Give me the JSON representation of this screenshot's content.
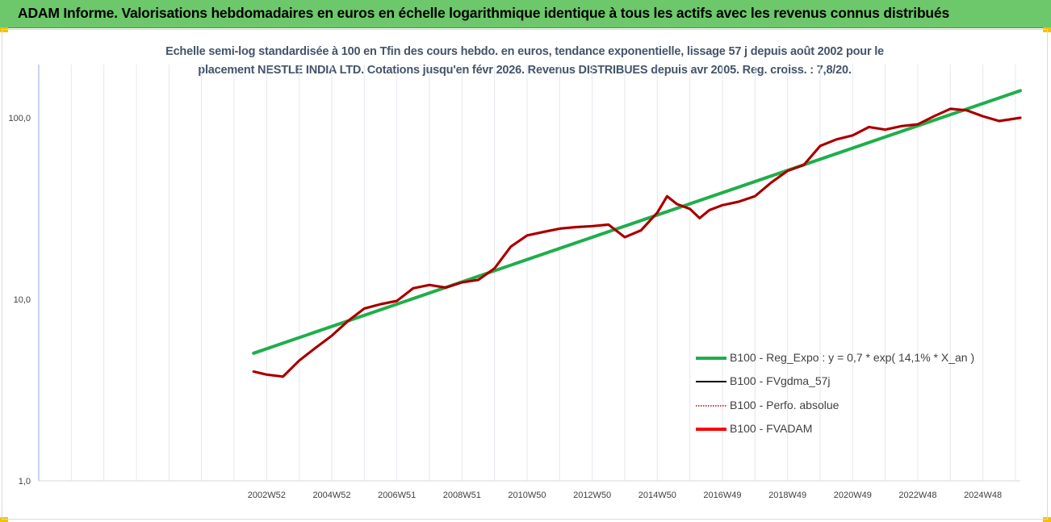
{
  "banner": {
    "title": "ADAM Informe. Valorisations hebdomadaires en euros en échelle logarithmique identique à tous les actifs avec les revenus connus distribués",
    "background": "#6cc86a",
    "corner_color": "#f5c000"
  },
  "subtitle": {
    "line1": "Echelle semi-log standardisée à 100 en Tfin des cours hebdo. en euros, tendance exponentielle, lissage 57 j depuis août 2002 pour le",
    "line2": "placement NESTLE INDIA LTD. Cotations jusqu'en févr 2026. Revenus DISTRIBUES depuis avr 2005. Reg. croiss. : 7,8/20."
  },
  "chart_data": {
    "type": "line",
    "y_scale": "log",
    "ylim": [
      1,
      200
    ],
    "y_ticks": [
      "100,0",
      "10,0",
      "1,0"
    ],
    "y_tick_values": [
      100,
      10,
      1
    ],
    "x_tick_labels": [
      "2002W52",
      "2004W52",
      "2006W51",
      "2008W51",
      "2010W50",
      "2012W50",
      "2014W50",
      "2016W49",
      "2018W49",
      "2020W49",
      "2022W48",
      "2024W48"
    ],
    "x_tick_years": [
      2003.0,
      2005.0,
      2007.0,
      2009.0,
      2011.0,
      2013.0,
      2015.0,
      2017.0,
      2019.0,
      2021.0,
      2023.0,
      2025.0
    ],
    "xlim": [
      1996.0,
      2026.15
    ],
    "grid": {
      "vertical": true,
      "horizontal": false
    },
    "legend_position": "bottom-right",
    "series": [
      {
        "name": "B100 - Reg_Expo : y = 0,7 * exp( 14,1% *  X_an )",
        "color": "#1fae4b",
        "style": "solid",
        "points": [
          [
            2002.6,
            5.05
          ],
          [
            2026.15,
            141.0
          ]
        ]
      },
      {
        "name": "B100 - FVgdma_57j",
        "color": "#000000",
        "style": "solid",
        "points": [
          [
            2002.6,
            4.0
          ],
          [
            2003.0,
            3.85
          ],
          [
            2003.5,
            3.75
          ],
          [
            2004.0,
            4.6
          ],
          [
            2004.5,
            5.4
          ],
          [
            2005.0,
            6.3
          ],
          [
            2005.5,
            7.6
          ],
          [
            2006.0,
            8.9
          ],
          [
            2006.5,
            9.4
          ],
          [
            2007.0,
            9.8
          ],
          [
            2007.5,
            11.5
          ],
          [
            2008.0,
            12.0
          ],
          [
            2008.5,
            11.6
          ],
          [
            2009.0,
            12.4
          ],
          [
            2009.5,
            12.8
          ],
          [
            2010.0,
            14.8
          ],
          [
            2010.5,
            19.5
          ],
          [
            2011.0,
            22.5
          ],
          [
            2011.5,
            23.5
          ],
          [
            2012.0,
            24.5
          ],
          [
            2012.5,
            25.0
          ],
          [
            2013.0,
            25.3
          ],
          [
            2013.5,
            25.8
          ],
          [
            2014.0,
            22.0
          ],
          [
            2014.5,
            24.0
          ],
          [
            2015.0,
            30.0
          ],
          [
            2015.3,
            37.0
          ],
          [
            2015.6,
            33.5
          ],
          [
            2016.0,
            31.5
          ],
          [
            2016.3,
            28.0
          ],
          [
            2016.6,
            31.0
          ],
          [
            2017.0,
            33.0
          ],
          [
            2017.5,
            34.5
          ],
          [
            2018.0,
            37.0
          ],
          [
            2018.5,
            44.0
          ],
          [
            2019.0,
            51.0
          ],
          [
            2019.5,
            55.0
          ],
          [
            2020.0,
            70.0
          ],
          [
            2020.5,
            76.0
          ],
          [
            2021.0,
            80.0
          ],
          [
            2021.5,
            89.0
          ],
          [
            2022.0,
            86.0
          ],
          [
            2022.5,
            90.0
          ],
          [
            2023.0,
            92.0
          ],
          [
            2023.5,
            102.0
          ],
          [
            2024.0,
            112.0
          ],
          [
            2024.5,
            110.0
          ],
          [
            2025.0,
            102.0
          ],
          [
            2025.5,
            96.0
          ],
          [
            2026.15,
            100.0
          ]
        ]
      },
      {
        "name": "B100 - Perfo. absolue",
        "color": "#c00000",
        "style": "dotted",
        "points": [
          [
            2002.6,
            4.0
          ],
          [
            2003.0,
            3.85
          ],
          [
            2003.5,
            3.75
          ],
          [
            2004.0,
            4.6
          ],
          [
            2004.5,
            5.4
          ],
          [
            2005.0,
            6.3
          ],
          [
            2005.5,
            7.6
          ],
          [
            2006.0,
            8.9
          ],
          [
            2006.5,
            9.4
          ],
          [
            2007.0,
            9.8
          ],
          [
            2007.5,
            11.5
          ],
          [
            2008.0,
            12.0
          ],
          [
            2008.5,
            11.6
          ],
          [
            2009.0,
            12.4
          ],
          [
            2009.5,
            12.8
          ],
          [
            2010.0,
            14.8
          ],
          [
            2010.5,
            19.5
          ],
          [
            2011.0,
            22.5
          ],
          [
            2011.5,
            23.5
          ],
          [
            2012.0,
            24.5
          ],
          [
            2012.5,
            25.0
          ],
          [
            2013.0,
            25.3
          ],
          [
            2013.5,
            25.8
          ],
          [
            2014.0,
            22.0
          ],
          [
            2014.5,
            24.0
          ],
          [
            2015.0,
            30.0
          ],
          [
            2015.3,
            37.0
          ],
          [
            2015.6,
            33.5
          ],
          [
            2016.0,
            31.5
          ],
          [
            2016.3,
            28.0
          ],
          [
            2016.6,
            31.0
          ],
          [
            2017.0,
            33.0
          ],
          [
            2017.5,
            34.5
          ],
          [
            2018.0,
            37.0
          ],
          [
            2018.5,
            44.0
          ],
          [
            2019.0,
            51.0
          ],
          [
            2019.5,
            55.0
          ],
          [
            2020.0,
            70.0
          ],
          [
            2020.5,
            76.0
          ],
          [
            2021.0,
            80.0
          ],
          [
            2021.5,
            89.0
          ],
          [
            2022.0,
            86.0
          ],
          [
            2022.5,
            90.0
          ],
          [
            2023.0,
            92.0
          ],
          [
            2023.5,
            102.0
          ],
          [
            2024.0,
            112.0
          ],
          [
            2024.5,
            110.0
          ],
          [
            2025.0,
            102.0
          ],
          [
            2025.5,
            96.0
          ],
          [
            2026.15,
            100.0
          ]
        ]
      },
      {
        "name": "B100 - FVADAM",
        "color": "#ff0000",
        "style": "solid",
        "points": [
          [
            2002.6,
            4.0
          ],
          [
            2003.0,
            3.85
          ],
          [
            2003.5,
            3.75
          ],
          [
            2004.0,
            4.6
          ],
          [
            2004.5,
            5.4
          ],
          [
            2005.0,
            6.3
          ],
          [
            2005.5,
            7.6
          ],
          [
            2006.0,
            8.9
          ],
          [
            2006.5,
            9.4
          ],
          [
            2007.0,
            9.8
          ],
          [
            2007.5,
            11.5
          ],
          [
            2008.0,
            12.0
          ],
          [
            2008.5,
            11.6
          ],
          [
            2009.0,
            12.4
          ],
          [
            2009.5,
            12.8
          ],
          [
            2010.0,
            14.8
          ],
          [
            2010.5,
            19.5
          ],
          [
            2011.0,
            22.5
          ],
          [
            2011.5,
            23.5
          ],
          [
            2012.0,
            24.5
          ],
          [
            2012.5,
            25.0
          ],
          [
            2013.0,
            25.3
          ],
          [
            2013.5,
            25.8
          ],
          [
            2014.0,
            22.0
          ],
          [
            2014.5,
            24.0
          ],
          [
            2015.0,
            30.0
          ],
          [
            2015.3,
            37.0
          ],
          [
            2015.6,
            33.5
          ],
          [
            2016.0,
            31.5
          ],
          [
            2016.3,
            28.0
          ],
          [
            2016.6,
            31.0
          ],
          [
            2017.0,
            33.0
          ],
          [
            2017.5,
            34.5
          ],
          [
            2018.0,
            37.0
          ],
          [
            2018.5,
            44.0
          ],
          [
            2019.0,
            51.0
          ],
          [
            2019.5,
            55.0
          ],
          [
            2020.0,
            70.0
          ],
          [
            2020.5,
            76.0
          ],
          [
            2021.0,
            80.0
          ],
          [
            2021.5,
            89.0
          ],
          [
            2022.0,
            86.0
          ],
          [
            2022.5,
            90.0
          ],
          [
            2023.0,
            92.0
          ],
          [
            2023.5,
            102.0
          ],
          [
            2024.0,
            112.0
          ],
          [
            2024.5,
            110.0
          ],
          [
            2025.0,
            102.0
          ],
          [
            2025.5,
            96.0
          ],
          [
            2026.15,
            100.0
          ]
        ]
      }
    ]
  }
}
